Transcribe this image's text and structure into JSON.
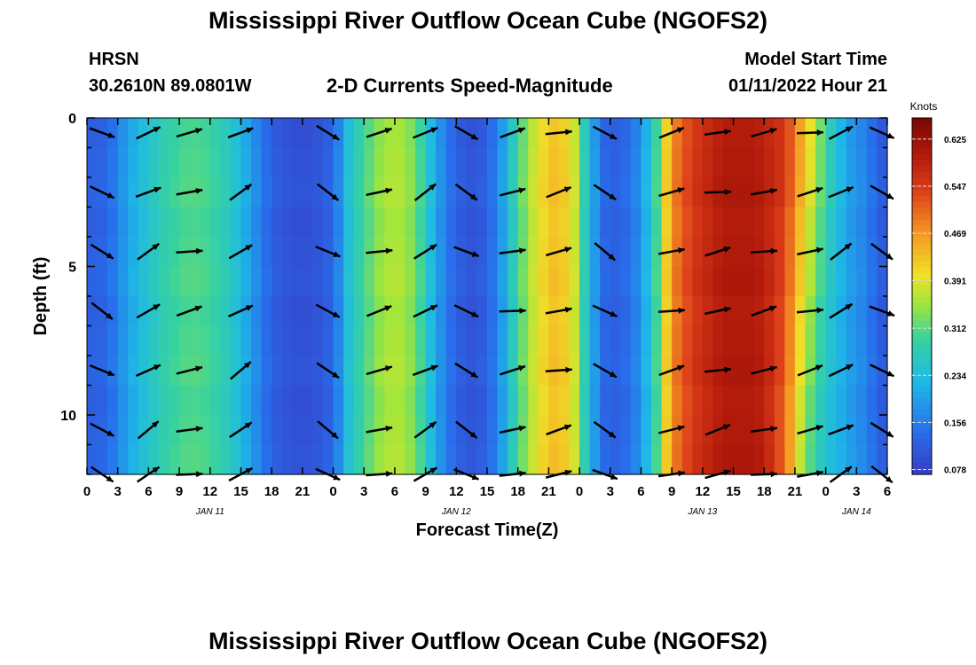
{
  "header": {
    "title": "Mississippi River Outflow Ocean Cube (NGOFS2)",
    "station": "HRSN",
    "coords": "30.2610N  89.0801W",
    "subtitle": "2-D Currents Speed-Magnitude",
    "model_start_label": "Model Start Time",
    "model_start_value": "01/11/2022 Hour 21"
  },
  "footer": {
    "repeat_title": "Mississippi River Outflow Ocean Cube (NGOFS2)"
  },
  "chart_data": {
    "type": "heatmap",
    "xlabel": "Forecast Time(Z)",
    "ylabel": "Depth (ft)",
    "x_tick_labels": [
      "0",
      "3",
      "6",
      "9",
      "12",
      "15",
      "18",
      "21",
      "0",
      "3",
      "6",
      "9",
      "12",
      "15",
      "18",
      "21",
      "0",
      "3",
      "6",
      "9",
      "12",
      "15",
      "18",
      "21",
      "0",
      "3",
      "6"
    ],
    "date_labels": [
      {
        "label": "JAN 11",
        "hour": 12
      },
      {
        "label": "JAN 12",
        "hour": 36
      },
      {
        "label": "JAN 13",
        "hour": 60
      },
      {
        "label": "JAN 14",
        "hour": 75
      }
    ],
    "xlim": [
      0,
      78
    ],
    "ylim": [
      12,
      0
    ],
    "y_ticks": [
      0,
      5,
      10
    ],
    "colorbar": {
      "title": "Knots",
      "ticks": [
        0.078,
        0.156,
        0.234,
        0.312,
        0.391,
        0.469,
        0.547,
        0.625
      ],
      "range": [
        0.07,
        0.66
      ]
    },
    "arrow_hours": [
      2,
      6.5,
      10.5,
      15.5,
      24,
      29,
      33.5,
      37.5,
      42,
      46.5,
      51,
      57.5,
      62,
      66.5,
      71,
      74,
      78
    ],
    "arrow_depths": [
      0.5,
      2.5,
      4.5,
      6.5,
      8.5,
      10.5,
      12
    ],
    "speed_by_hour": [
      {
        "hour": 0,
        "speed": 0.12
      },
      {
        "hour": 2,
        "speed": 0.13
      },
      {
        "hour": 4,
        "speed": 0.2
      },
      {
        "hour": 6,
        "speed": 0.25
      },
      {
        "hour": 8,
        "speed": 0.29
      },
      {
        "hour": 10,
        "speed": 0.31
      },
      {
        "hour": 12,
        "speed": 0.3
      },
      {
        "hour": 14,
        "speed": 0.26
      },
      {
        "hour": 16,
        "speed": 0.19
      },
      {
        "hour": 18,
        "speed": 0.12
      },
      {
        "hour": 20,
        "speed": 0.1
      },
      {
        "hour": 22,
        "speed": 0.1
      },
      {
        "hour": 24,
        "speed": 0.13
      },
      {
        "hour": 25.5,
        "speed": 0.24
      },
      {
        "hour": 27,
        "speed": 0.3
      },
      {
        "hour": 29,
        "speed": 0.36
      },
      {
        "hour": 31,
        "speed": 0.36
      },
      {
        "hour": 32.5,
        "speed": 0.3
      },
      {
        "hour": 34,
        "speed": 0.2
      },
      {
        "hour": 36,
        "speed": 0.12
      },
      {
        "hour": 38,
        "speed": 0.1
      },
      {
        "hour": 40,
        "speed": 0.16
      },
      {
        "hour": 42,
        "speed": 0.3
      },
      {
        "hour": 44,
        "speed": 0.4
      },
      {
        "hour": 46,
        "speed": 0.44
      },
      {
        "hour": 47.5,
        "speed": 0.38
      },
      {
        "hour": 49,
        "speed": 0.22
      },
      {
        "hour": 50.5,
        "speed": 0.13
      },
      {
        "hour": 52,
        "speed": 0.12
      },
      {
        "hour": 54,
        "speed": 0.18
      },
      {
        "hour": 55.5,
        "speed": 0.3
      },
      {
        "hour": 57,
        "speed": 0.48
      },
      {
        "hour": 59,
        "speed": 0.55
      },
      {
        "hour": 62,
        "speed": 0.6
      },
      {
        "hour": 65,
        "speed": 0.6
      },
      {
        "hour": 68,
        "speed": 0.56
      },
      {
        "hour": 70,
        "speed": 0.44
      },
      {
        "hour": 72,
        "speed": 0.3
      },
      {
        "hour": 74,
        "speed": 0.2
      },
      {
        "hour": 76,
        "speed": 0.16
      },
      {
        "hour": 78,
        "speed": 0.1
      }
    ]
  }
}
